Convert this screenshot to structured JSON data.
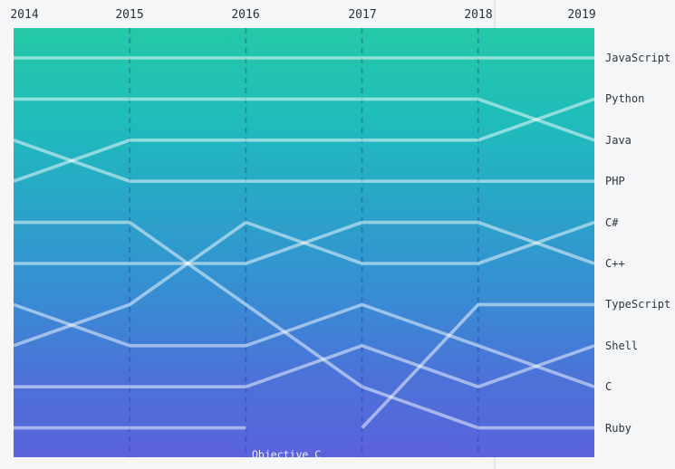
{
  "chart_data": {
    "type": "line",
    "subtype": "bump-chart-ranking",
    "title": "",
    "years": [
      2014,
      2015,
      2016,
      2017,
      2018,
      2019
    ],
    "rank_axis": {
      "direction": "1-at-top",
      "min": 1,
      "max": 10
    },
    "series": [
      {
        "name": "JavaScript",
        "ranks": [
          1,
          1,
          1,
          1,
          1,
          1
        ]
      },
      {
        "name": "Python",
        "ranks": [
          4,
          3,
          3,
          3,
          3,
          2
        ]
      },
      {
        "name": "Java",
        "ranks": [
          2,
          2,
          2,
          2,
          2,
          3
        ]
      },
      {
        "name": "PHP",
        "ranks": [
          3,
          4,
          4,
          4,
          4,
          4
        ]
      },
      {
        "name": "C#",
        "ranks": [
          8,
          7,
          5,
          6,
          6,
          5
        ]
      },
      {
        "name": "C++",
        "ranks": [
          6,
          6,
          6,
          5,
          5,
          6
        ]
      },
      {
        "name": "TypeScript",
        "ranks": [
          null,
          null,
          null,
          10,
          7,
          7
        ]
      },
      {
        "name": "Shell",
        "ranks": [
          9,
          9,
          9,
          8,
          9,
          8
        ]
      },
      {
        "name": "C",
        "ranks": [
          7,
          8,
          8,
          7,
          8,
          9
        ]
      },
      {
        "name": "Ruby",
        "ranks": [
          5,
          5,
          7,
          9,
          10,
          10
        ]
      },
      {
        "name": "Objective C",
        "ranks": [
          10,
          10,
          10,
          null,
          null,
          null
        ]
      }
    ],
    "annotations": [
      {
        "text": "Objective C",
        "meaning": "series drops out of top 10 after 2016"
      }
    ],
    "legend_position": "right-edge-labels",
    "grid": "vertical-dashed-per-year"
  },
  "colors": {
    "page_background": "#f5f6f8",
    "gradient_top": "#24c9a7",
    "gradient_mid": "#3590d2",
    "gradient_bottom": "#5b62dc",
    "line": "rgba(255,255,255,0.5)",
    "gridline": "rgba(38,52,148,0.35)",
    "year_label_text": "#2b3137",
    "lang_label_text": "#2e353b",
    "annotation_text": "#eef2ff",
    "divider_line": "#e2e4e8"
  },
  "annotation_label": "Objective C"
}
